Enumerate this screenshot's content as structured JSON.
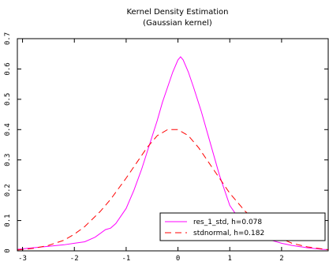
{
  "chart_data": {
    "type": "line",
    "title": "Kernel Density Estimation",
    "subtitle": "(Gaussian kernel)",
    "xlabel": "",
    "ylabel": "",
    "xlim": [
      -3.1,
      2.9
    ],
    "ylim": [
      0,
      0.7
    ],
    "x_ticks": [
      -3,
      -2,
      -1,
      0,
      1,
      2
    ],
    "x_tick_labels": [
      "-3",
      "-2",
      "-1",
      "0",
      "1",
      "2"
    ],
    "y_ticks": [
      0,
      0.1,
      0.2,
      0.3,
      0.4,
      0.5,
      0.6,
      0.7
    ],
    "y_tick_labels": [
      "0",
      "0.1",
      "0.2",
      "0.3",
      "0.4",
      "0.5",
      "0.6",
      "0.7"
    ],
    "grid": false,
    "legend_position": "bottom-right",
    "series": [
      {
        "name": "res_1_std, h=0.078",
        "color": "#ff00ff",
        "dash": "solid",
        "x": [
          -3.1,
          -2.8,
          -2.5,
          -2.2,
          -2.0,
          -1.8,
          -1.6,
          -1.4,
          -1.3,
          -1.2,
          -1.0,
          -0.85,
          -0.7,
          -0.55,
          -0.4,
          -0.3,
          -0.2,
          -0.1,
          0.0,
          0.05,
          0.1,
          0.2,
          0.3,
          0.45,
          0.6,
          0.8,
          1.0,
          1.2,
          1.4,
          1.6,
          1.8,
          2.0,
          2.2,
          2.5,
          2.8,
          2.9
        ],
        "values": [
          0.005,
          0.01,
          0.015,
          0.02,
          0.025,
          0.03,
          0.045,
          0.07,
          0.075,
          0.09,
          0.14,
          0.2,
          0.27,
          0.35,
          0.43,
          0.49,
          0.54,
          0.59,
          0.63,
          0.64,
          0.63,
          0.59,
          0.54,
          0.46,
          0.37,
          0.25,
          0.15,
          0.1,
          0.07,
          0.05,
          0.035,
          0.025,
          0.018,
          0.01,
          0.005,
          0.004
        ]
      },
      {
        "name": "stdnormal, h=0.182",
        "color": "#ff0000",
        "dash": "dashed",
        "x": [
          -3.1,
          -2.8,
          -2.5,
          -2.2,
          -2.0,
          -1.8,
          -1.5,
          -1.3,
          -1.0,
          -0.8,
          -0.6,
          -0.4,
          -0.2,
          0.0,
          0.2,
          0.4,
          0.6,
          0.8,
          1.0,
          1.3,
          1.5,
          1.8,
          2.0,
          2.2,
          2.5,
          2.8,
          2.9
        ],
        "values": [
          0.003,
          0.008,
          0.018,
          0.035,
          0.055,
          0.08,
          0.13,
          0.17,
          0.24,
          0.29,
          0.34,
          0.38,
          0.4,
          0.4,
          0.38,
          0.34,
          0.29,
          0.24,
          0.19,
          0.13,
          0.1,
          0.06,
          0.04,
          0.025,
          0.013,
          0.006,
          0.004
        ]
      }
    ]
  }
}
